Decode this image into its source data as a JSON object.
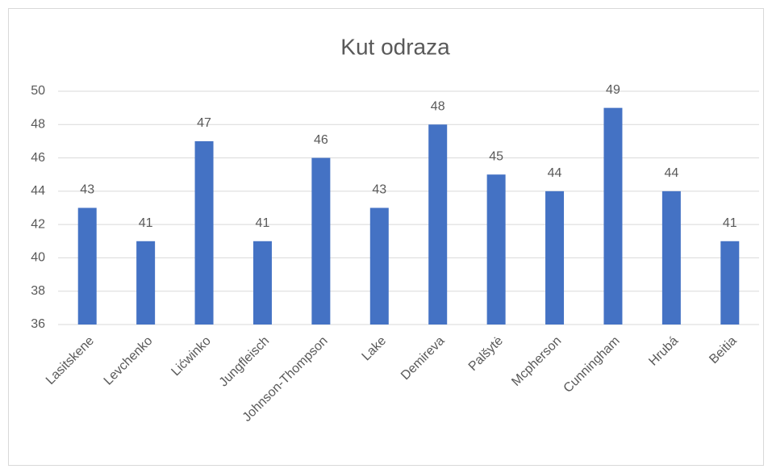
{
  "chart_data": {
    "type": "bar",
    "title": "Kut odraza",
    "categories": [
      "Lasitskene",
      "Levchenko",
      "Lićwinko",
      "Jungfleisch",
      "Johnson-Thompson",
      "Lake",
      "Demireva",
      "Palšytė",
      "Mcpherson",
      "Cunningham",
      "Hrubá",
      "Beitia"
    ],
    "values": [
      43,
      41,
      47,
      41,
      46,
      43,
      48,
      45,
      44,
      49,
      44,
      41
    ],
    "color": "#4472c4",
    "ylim": [
      36,
      50
    ],
    "yticks": [
      36,
      38,
      40,
      42,
      44,
      46,
      48,
      50
    ],
    "grid": true,
    "data_labels": true
  }
}
